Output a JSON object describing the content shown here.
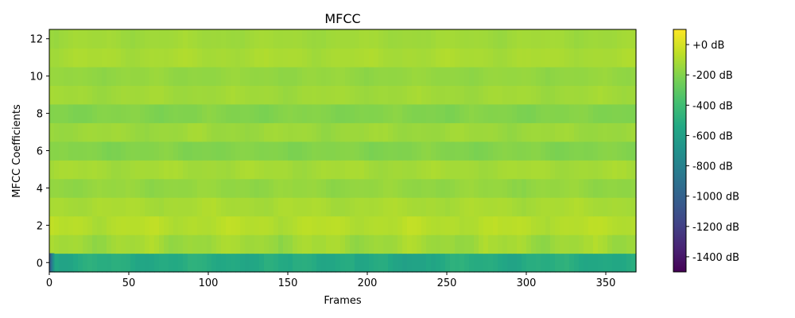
{
  "chart_data": {
    "type": "heatmap",
    "title": "MFCC",
    "xlabel": "Frames",
    "ylabel": "MFCC Coefficients",
    "xlim": [
      0,
      369
    ],
    "ylim": [
      -0.5,
      12.5
    ],
    "xticks": [
      0,
      50,
      100,
      150,
      200,
      250,
      300,
      350
    ],
    "yticks": [
      0,
      2,
      4,
      6,
      8,
      10,
      12
    ],
    "n_frames": 369,
    "n_coefficients": 13,
    "colormap": "viridis",
    "colorbar": {
      "range": [
        -1500,
        100
      ],
      "ticks": [
        0,
        -200,
        -400,
        -600,
        -800,
        -1000,
        -1200,
        -1400
      ],
      "tick_labels": [
        "+0 dB",
        "-200 dB",
        "-400 dB",
        "-600 dB",
        "-800 dB",
        "-1000 dB",
        "-1200 dB",
        "-1400 dB"
      ],
      "unit": "dB"
    },
    "coefficient_levels_db": [
      -520,
      -130,
      -80,
      -110,
      -160,
      -120,
      -200,
      -140,
      -200,
      -130,
      -160,
      -110,
      -130
    ],
    "coefficient_variation_db": [
      70,
      60,
      40,
      30,
      30,
      30,
      30,
      30,
      30,
      25,
      25,
      25,
      25
    ],
    "dark_frames_row0": {
      "frames": [
        0,
        1,
        2
      ],
      "values_db": [
        -1000,
        -880,
        -700
      ]
    },
    "grid": false,
    "colors": {
      "viridis_low": "#440154",
      "viridis_mid": "#21918c",
      "viridis_high": "#fde725",
      "axis": "#000000"
    }
  }
}
